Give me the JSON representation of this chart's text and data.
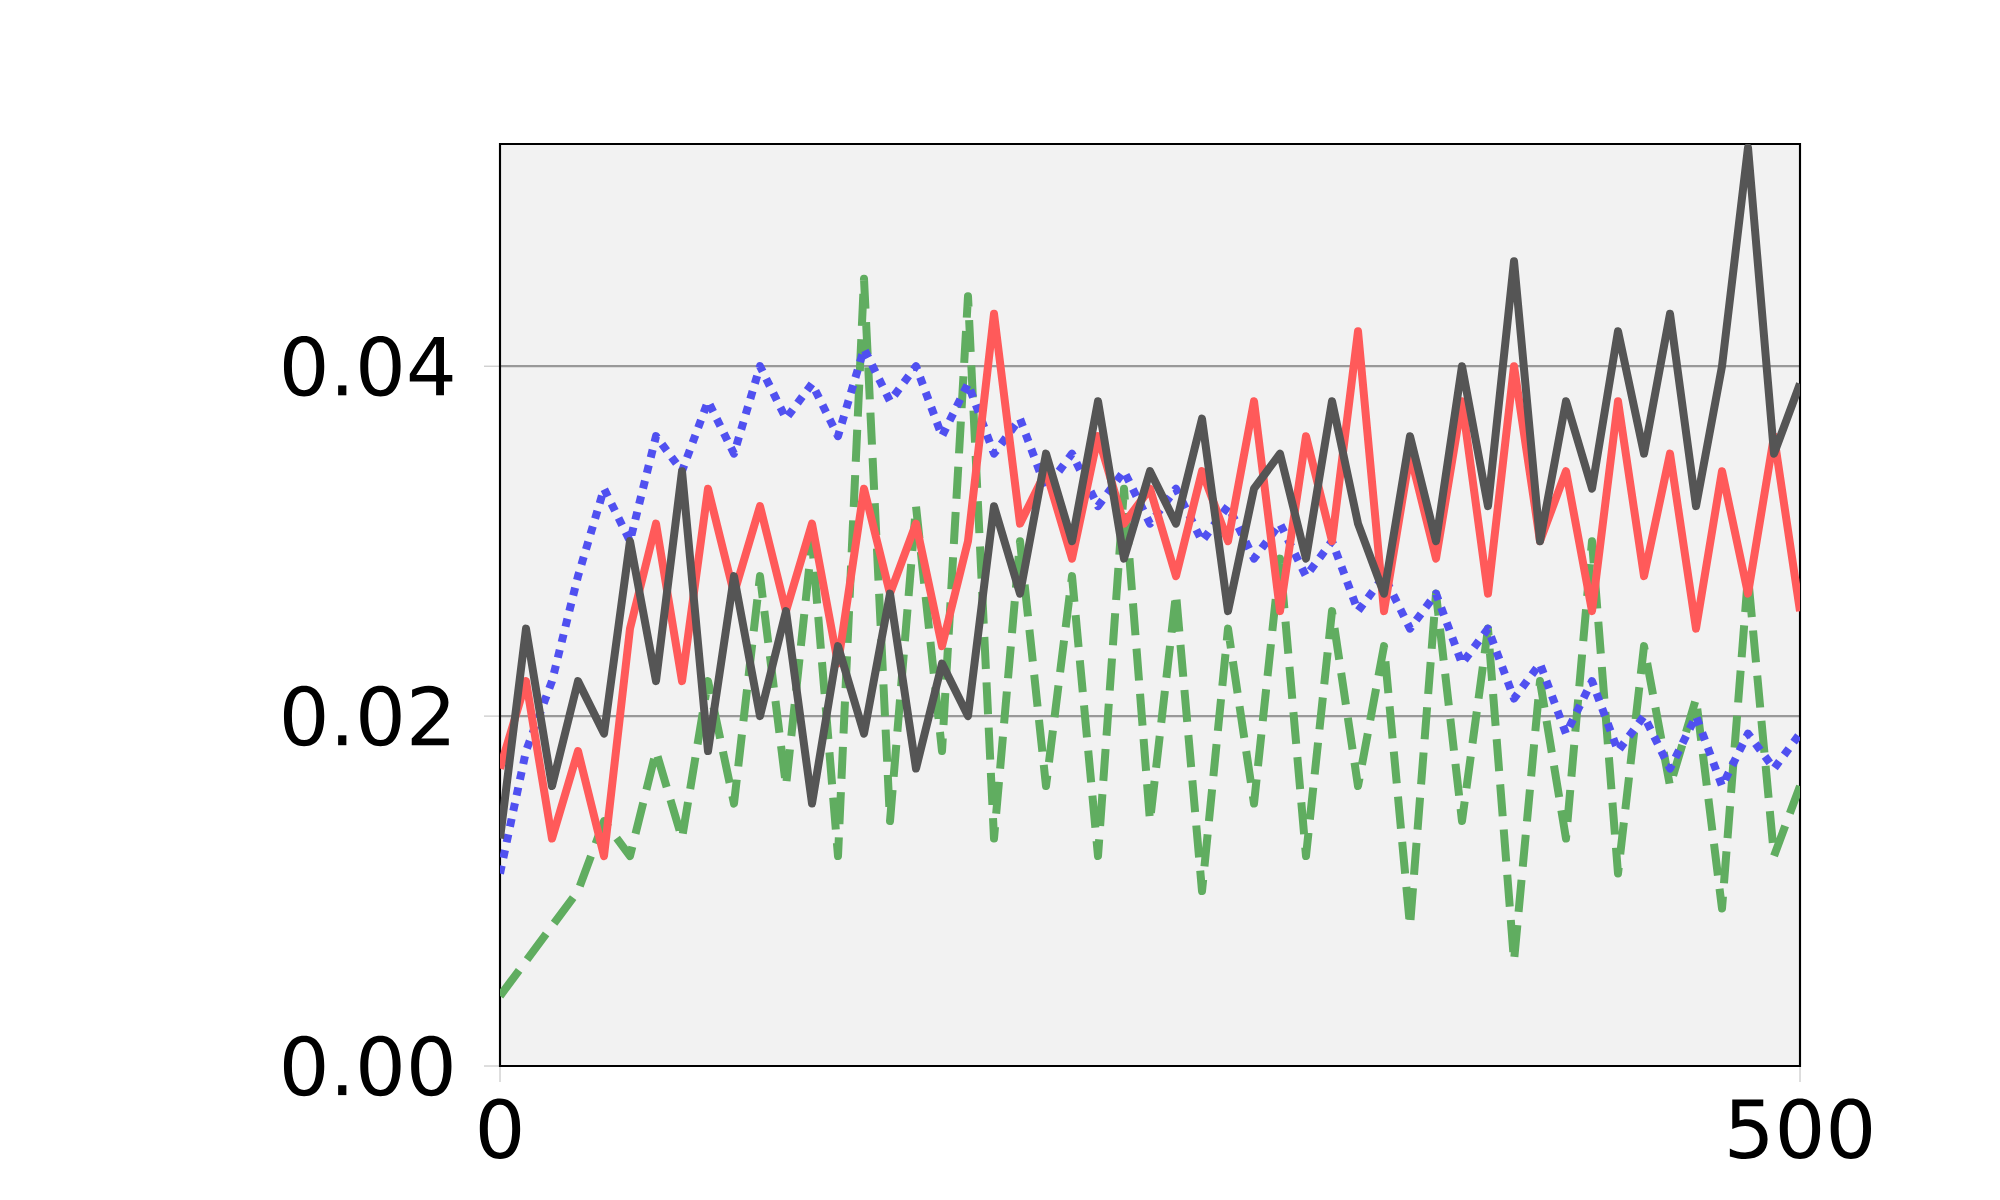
{
  "chart_data": {
    "type": "line",
    "x": [
      0,
      10,
      20,
      30,
      40,
      50,
      60,
      70,
      80,
      90,
      100,
      110,
      120,
      130,
      140,
      150,
      160,
      170,
      180,
      190,
      200,
      210,
      220,
      230,
      240,
      250,
      260,
      270,
      280,
      290,
      300,
      310,
      320,
      330,
      340,
      350,
      360,
      370,
      380,
      390,
      400,
      410,
      420,
      430,
      440,
      450,
      460,
      470,
      480,
      490,
      500
    ],
    "xlim": [
      0,
      500
    ],
    "xticks": [
      0,
      500
    ],
    "ylim": [
      0,
      0.0527
    ],
    "yticks": [
      {
        "value": 0,
        "label": "0.00"
      },
      {
        "value": 0.02,
        "label": "0.02"
      },
      {
        "value": 0.04,
        "label": "0.04"
      }
    ],
    "grid": "y",
    "series": [
      {
        "color": "#60ad60",
        "line_style": "dashed",
        "values": [
          0.004,
          0.006,
          0.008,
          0.01,
          0.014,
          0.012,
          0.018,
          0.013,
          0.022,
          0.015,
          0.028,
          0.016,
          0.03,
          0.012,
          0.045,
          0.014,
          0.032,
          0.018,
          0.044,
          0.013,
          0.03,
          0.016,
          0.028,
          0.012,
          0.033,
          0.014,
          0.027,
          0.01,
          0.025,
          0.015,
          0.029,
          0.012,
          0.026,
          0.016,
          0.024,
          0.008,
          0.027,
          0.014,
          0.025,
          0.006,
          0.022,
          0.013,
          0.03,
          0.011,
          0.024,
          0.016,
          0.021,
          0.009,
          0.028,
          0.012,
          0.016
        ]
      },
      {
        "color": "#5050f0",
        "line_style": "dotted",
        "values": [
          0.011,
          0.018,
          0.022,
          0.028,
          0.033,
          0.03,
          0.036,
          0.034,
          0.038,
          0.035,
          0.04,
          0.037,
          0.039,
          0.036,
          0.041,
          0.038,
          0.04,
          0.036,
          0.039,
          0.035,
          0.037,
          0.033,
          0.035,
          0.032,
          0.034,
          0.031,
          0.033,
          0.03,
          0.032,
          0.029,
          0.031,
          0.028,
          0.03,
          0.026,
          0.028,
          0.025,
          0.027,
          0.023,
          0.025,
          0.021,
          0.023,
          0.019,
          0.022,
          0.018,
          0.02,
          0.017,
          0.02,
          0.016,
          0.019,
          0.017,
          0.019
        ]
      },
      {
        "color": "#ff5a5a",
        "line_style": "solid",
        "values": [
          0.017,
          0.022,
          0.013,
          0.018,
          0.012,
          0.025,
          0.031,
          0.022,
          0.033,
          0.027,
          0.032,
          0.026,
          0.031,
          0.023,
          0.033,
          0.027,
          0.031,
          0.024,
          0.03,
          0.043,
          0.031,
          0.034,
          0.029,
          0.036,
          0.031,
          0.033,
          0.028,
          0.034,
          0.03,
          0.038,
          0.026,
          0.036,
          0.03,
          0.042,
          0.026,
          0.035,
          0.029,
          0.038,
          0.027,
          0.04,
          0.03,
          0.034,
          0.026,
          0.038,
          0.028,
          0.035,
          0.025,
          0.034,
          0.027,
          0.036,
          0.026
        ]
      },
      {
        "color": "#555555",
        "line_style": "solid",
        "values": [
          0.013,
          0.025,
          0.016,
          0.022,
          0.019,
          0.03,
          0.022,
          0.034,
          0.018,
          0.028,
          0.02,
          0.026,
          0.015,
          0.024,
          0.019,
          0.027,
          0.017,
          0.023,
          0.02,
          0.032,
          0.027,
          0.035,
          0.03,
          0.038,
          0.029,
          0.034,
          0.031,
          0.037,
          0.026,
          0.033,
          0.035,
          0.029,
          0.038,
          0.031,
          0.027,
          0.036,
          0.03,
          0.04,
          0.032,
          0.046,
          0.03,
          0.038,
          0.033,
          0.042,
          0.035,
          0.043,
          0.032,
          0.04,
          0.0525,
          0.035,
          0.039
        ]
      }
    ]
  }
}
